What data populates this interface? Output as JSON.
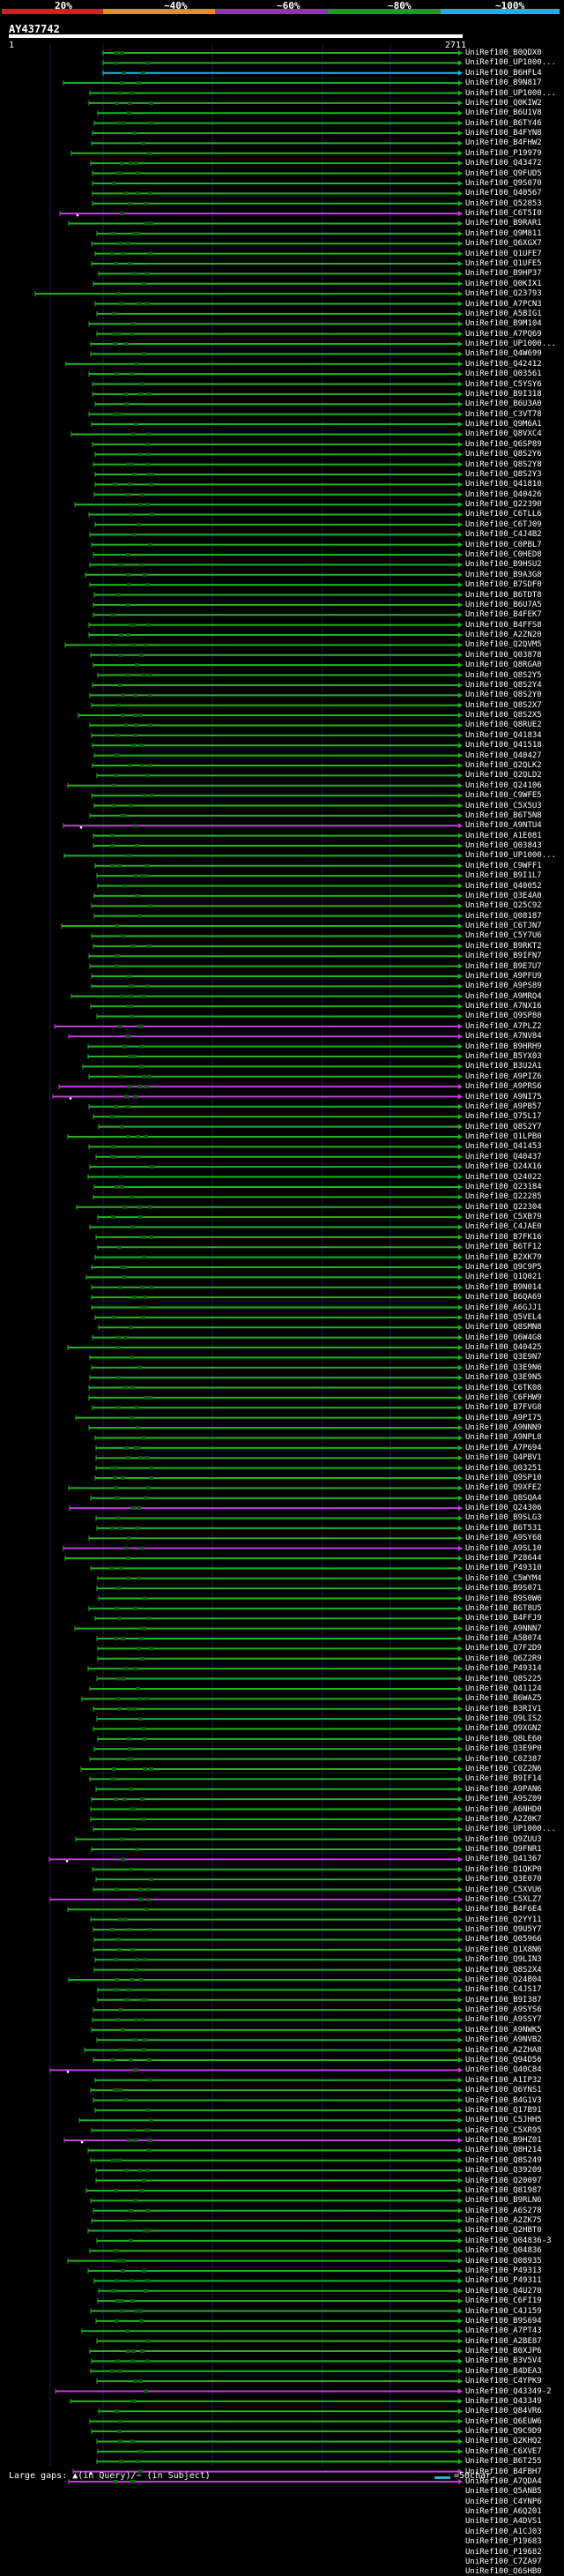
{
  "legend": {
    "ticks": [
      "20%",
      "~40%",
      "~60%",
      "~80%",
      "~100%"
    ],
    "colors": [
      "#e0191f",
      "#f08a1e",
      "#8a3aa8",
      "#1a9a2a",
      "#18b4e0"
    ]
  },
  "query": {
    "title": "AY437742",
    "start": "1",
    "end": "2711",
    "length": 2711
  },
  "hits": [
    "UniRef100_B0QDX0",
    "UniRef100_UP1000...",
    "UniRef100_B6HFL4",
    "UniRef100_B9N817",
    "UniRef100_UP1000...",
    "UniRef100_Q0KIW2",
    "UniRef100_B6U1V8",
    "UniRef100_B6TY46",
    "UniRef100_B4FYN8",
    "UniRef100_B4FHW2",
    "UniRef100_P19979",
    "UniRef100_Q43472",
    "UniRef100_Q9FUD5",
    "UniRef100_Q9S070",
    "UniRef100_Q40567",
    "UniRef100_Q52853",
    "UniRef100_C6T5I0",
    "UniRef100_B9RAR1",
    "UniRef100_Q9M811",
    "UniRef100_Q6XGX7",
    "UniRef100_Q1UFE7",
    "UniRef100_Q1UFE5",
    "UniRef100_B9HP37",
    "UniRef100_Q0KIX1",
    "UniRef100_Q23793",
    "UniRef100_A7PCN3",
    "UniRef100_A5BIG1",
    "UniRef100_B9M104",
    "UniRef100_A7PQ69",
    "UniRef100_UP1000...",
    "UniRef100_Q4W699",
    "UniRef100_Q42412",
    "UniRef100_Q03561",
    "UniRef100_C5YSY6",
    "UniRef100_B9I318",
    "UniRef100_B6U3A0",
    "UniRef100_C3VT78",
    "UniRef100_Q9M6A1",
    "UniRef100_Q8VXC4",
    "UniRef100_Q6SP89",
    "UniRef100_Q8S2Y6",
    "UniRef100_Q8S2Y8",
    "UniRef100_Q8S2Y3",
    "UniRef100_Q41810",
    "UniRef100_Q40426",
    "UniRef100_Q22390",
    "UniRef100_C6TLL6",
    "UniRef100_C6TJ09",
    "UniRef100_C4J4B2",
    "UniRef100_C0PBL7",
    "UniRef100_C0HED8",
    "UniRef100_B9HSU2",
    "UniRef100_B9A3G8",
    "UniRef100_B7SDF0",
    "UniRef100_B6TDT8",
    "UniRef100_B6U7A5",
    "UniRef100_B4FEK7",
    "UniRef100_B4FFS8",
    "UniRef100_A2ZN20",
    "UniRef100_Q2QVM5",
    "UniRef100_Q03878",
    "UniRef100_Q8RGA0",
    "UniRef100_Q8S2Y5",
    "UniRef100_Q8S2Y4",
    "UniRef100_Q8S2Y0",
    "UniRef100_Q8S2X7",
    "UniRef100_Q8S2X5",
    "UniRef100_Q8RUE2",
    "UniRef100_Q41834",
    "UniRef100_Q41518",
    "UniRef100_Q40427",
    "UniRef100_Q2QLK2",
    "UniRef100_Q2QLD2",
    "UniRef100_Q24106",
    "UniRef100_C9WFE5",
    "UniRef100_C5X5U3",
    "UniRef100_B6T5N8",
    "UniRef100_A9NTU4",
    "UniRef100_A1E081",
    "UniRef100_Q03843",
    "UniRef100_UP1000...",
    "UniRef100_C9WFF1",
    "UniRef100_B9I1L7",
    "UniRef100_Q40052",
    "UniRef100_Q3E4A0",
    "UniRef100_Q25C92",
    "UniRef100_Q08187",
    "UniRef100_C6TJN7",
    "UniRef100_C5Y7U6",
    "UniRef100_B9RKT2",
    "UniRef100_B9IFN7",
    "UniRef100_B9E7U7",
    "UniRef100_A9PFU9",
    "UniRef100_A9PS89",
    "UniRef100_A9MRQ4",
    "UniRef100_A7NX16",
    "UniRef100_Q9SP80",
    "UniRef100_A7PLZ2",
    "UniRef100_A7NV84",
    "UniRef100_B9HRH9",
    "UniRef100_B5YX03",
    "UniRef100_B3U2A1",
    "UniRef100_A9PIZ6",
    "UniRef100_A9PRS6",
    "UniRef100_A9NI75",
    "UniRef100_A9PB57",
    "UniRef100_Q75L17",
    "UniRef100_Q8S2Y7",
    "UniRef100_Q1LPB0",
    "UniRef100_Q41453",
    "UniRef100_Q40437",
    "UniRef100_Q24X16",
    "UniRef100_Q24022",
    "UniRef100_Q23184",
    "UniRef100_Q22285",
    "UniRef100_Q22304",
    "UniRef100_C5XB79",
    "UniRef100_C4JAE0",
    "UniRef100_B7FK16",
    "UniRef100_B6TF12",
    "UniRef100_B2XK79",
    "UniRef100_Q9C9P5",
    "UniRef100_Q1Q021",
    "UniRef100_B9N014",
    "UniRef100_B6QA69",
    "UniRef100_A6GJJ1",
    "UniRef100_Q5VEL4",
    "UniRef100_Q8SMN8",
    "UniRef100_Q6W4G8",
    "UniRef100_Q40425",
    "UniRef100_Q3E9N7",
    "UniRef100_Q3E9N6",
    "UniRef100_Q3E9N5",
    "UniRef100_C6TK08",
    "UniRef100_C6FHW9",
    "UniRef100_B7FVG8",
    "UniRef100_A9PI75",
    "UniRef100_A9NNN9",
    "UniRef100_A9NPL8",
    "UniRef100_A7P694",
    "UniRef100_Q4PBV1",
    "UniRef100_Q03251",
    "UniRef100_Q9SP10",
    "UniRef100_Q9XFE2",
    "UniRef100_Q8SQA4",
    "UniRef100_Q24306",
    "UniRef100_B9SLG3",
    "UniRef100_B6T531",
    "UniRef100_A9SY68",
    "UniRef100_A9SL10",
    "UniRef100_P28644",
    "UniRef100_P49310",
    "UniRef100_C5WYM4",
    "UniRef100_B9S071",
    "UniRef100_B9S0W6",
    "UniRef100_B6T8U5",
    "UniRef100_B4FFJ9",
    "UniRef100_A9NNN7",
    "UniRef100_A5B074",
    "UniRef100_Q7F2D9",
    "UniRef100_Q6Z2R9",
    "UniRef100_P49314",
    "UniRef100_Q8S225",
    "UniRef100_Q41124",
    "UniRef100_B6WAZ5",
    "UniRef100_B3RIV1",
    "UniRef100_Q9LIS2",
    "UniRef100_Q9XGN2",
    "UniRef100_Q8LE60",
    "UniRef100_Q3E9P0",
    "UniRef100_C0Z387",
    "UniRef100_C0Z2N6",
    "UniRef100_B9IF14",
    "UniRef100_A9PAN6",
    "UniRef100_A9SZ09",
    "UniRef100_A6NHD0",
    "UniRef100_A2Z0K7",
    "UniRef100_UP1000...",
    "UniRef100_Q9ZUU3",
    "UniRef100_Q9FNR1",
    "UniRef100_Q41367",
    "UniRef100_Q1QKP0",
    "UniRef100_Q3E070",
    "UniRef100_C5XVU6",
    "UniRef100_C5XLZ7",
    "UniRef100_B4F6E4",
    "UniRef100_Q2YY11",
    "UniRef100_Q9U5Y7",
    "UniRef100_Q05966",
    "UniRef100_Q1X8N6",
    "UniRef100_Q9LIN3",
    "UniRef100_Q8S2X4",
    "UniRef100_Q24B04",
    "UniRef100_C4JS17",
    "UniRef100_B9I387",
    "UniRef100_A9SYS6",
    "UniRef100_A9SSY7",
    "UniRef100_A9NWK5",
    "UniRef100_A9NVB2",
    "UniRef100_A2ZHA8",
    "UniRef100_Q94D56",
    "UniRef100_Q40C84",
    "UniRef100_A1IP32",
    "UniRef100_Q6YNS1",
    "UniRef100_B4G1V3",
    "UniRef100_Q17B91",
    "UniRef100_C5JHH5",
    "UniRef100_C5XR95",
    "UniRef100_B9HZ01",
    "UniRef100_Q8H214",
    "UniRef100_Q8S249",
    "UniRef100_Q39209",
    "UniRef100_Q20097",
    "UniRef100_Q81987",
    "UniRef100_B9RLN6",
    "UniRef100_A6S278",
    "UniRef100_A2ZK75",
    "UniRef100_Q2HBT0",
    "UniRef100_Q04836-3",
    "UniRef100_Q04836",
    "UniRef100_Q08935",
    "UniRef100_P49313",
    "UniRef100_P49311",
    "UniRef100_Q4U270",
    "UniRef100_C6FI19",
    "UniRef100_C4J159",
    "UniRef100_B9S694",
    "UniRef100_A7PT43",
    "UniRef100_A2BE87",
    "UniRef100_B0XJP6",
    "UniRef100_B3V5V4",
    "UniRef100_B4DEA3",
    "UniRef100_C4YPK9",
    "UniRef100_Q43349-2",
    "UniRef100_Q43349",
    "UniRef100_Q84VR6",
    "UniRef100_Q6EUW6",
    "UniRef100_Q9C9D9",
    "UniRef100_Q2KHQ2",
    "UniRef100_C6XVE7",
    "UniRef100_B6T255",
    "UniRef100_B4FBH7",
    "UniRef100_A7QDA4",
    "UniRef100_Q5ANB5",
    "UniRef100_C4YNP6",
    "UniRef100_A6Q201",
    "UniRef100_A4DVS1",
    "UniRef100_A1CJ03",
    "UniRef100_P19683",
    "UniRef100_P19682",
    "UniRef100_C7ZA97",
    "UniRef100_Q6SHB0"
  ],
  "footer": {
    "note": "Large gaps: ▲(in Query)/~ (in Subject)",
    "scale": "=50char."
  }
}
